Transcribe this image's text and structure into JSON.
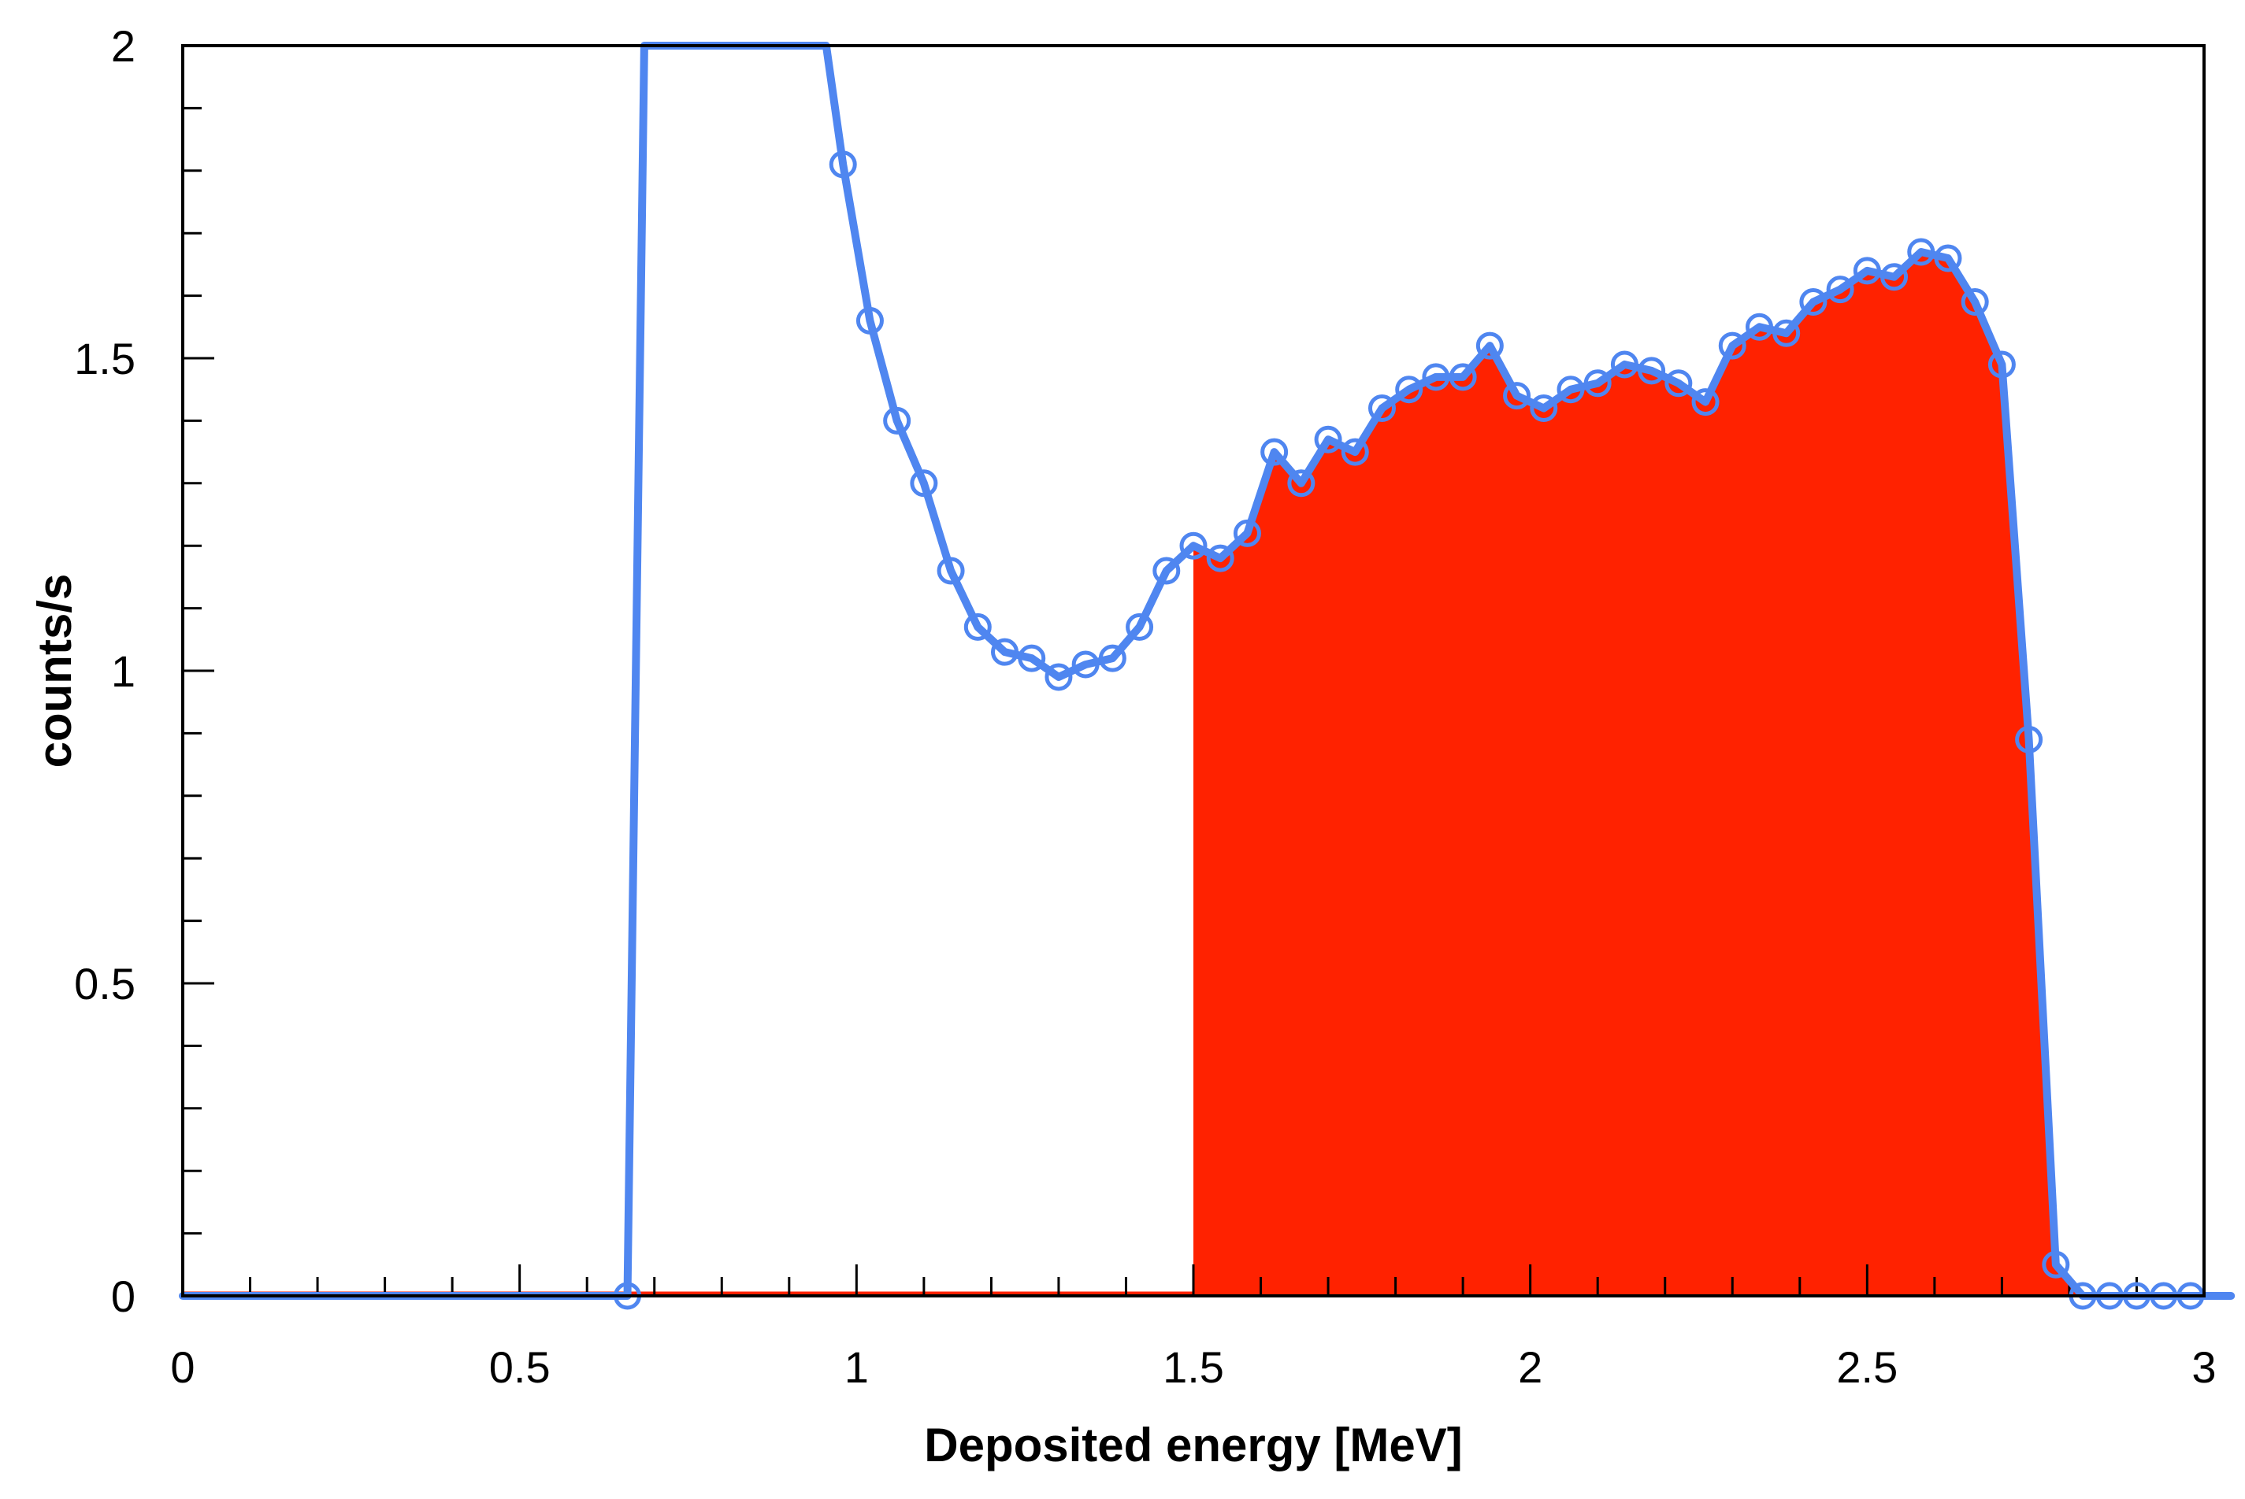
{
  "chart_data": {
    "type": "area",
    "xlabel": "Deposited energy [MeV]",
    "ylabel": "counts/s",
    "xlim": [
      0,
      3
    ],
    "ylim": [
      0,
      2
    ],
    "x_ticks": [
      "0",
      "0.5",
      "1",
      "1.5",
      "2",
      "2.5",
      "3"
    ],
    "y_ticks": [
      "0",
      "0.5",
      "1",
      "1.5",
      "2"
    ],
    "x_minor_step": 0.1,
    "y_minor_step": 0.1,
    "grid": false,
    "legend": "none",
    "fill_from_x": 1.5,
    "colors": {
      "line": "#4f86f0",
      "fill": "#ff2200",
      "axis": "#000000"
    },
    "series": [
      {
        "marker": "open-circle",
        "points": [
          [
            0.66,
            0.0
          ],
          [
            0.98,
            1.81
          ],
          [
            1.02,
            1.56
          ],
          [
            1.06,
            1.4
          ],
          [
            1.1,
            1.3
          ],
          [
            1.14,
            1.16
          ],
          [
            1.18,
            1.07
          ],
          [
            1.22,
            1.03
          ],
          [
            1.26,
            1.02
          ],
          [
            1.3,
            0.99
          ],
          [
            1.34,
            1.01
          ],
          [
            1.38,
            1.02
          ],
          [
            1.42,
            1.07
          ],
          [
            1.46,
            1.16
          ],
          [
            1.5,
            1.2
          ],
          [
            1.54,
            1.18
          ],
          [
            1.58,
            1.22
          ],
          [
            1.62,
            1.35
          ],
          [
            1.66,
            1.3
          ],
          [
            1.7,
            1.37
          ],
          [
            1.74,
            1.35
          ],
          [
            1.78,
            1.42
          ],
          [
            1.82,
            1.45
          ],
          [
            1.86,
            1.47
          ],
          [
            1.9,
            1.47
          ],
          [
            1.94,
            1.52
          ],
          [
            1.98,
            1.44
          ],
          [
            2.02,
            1.42
          ],
          [
            2.06,
            1.45
          ],
          [
            2.1,
            1.46
          ],
          [
            2.14,
            1.49
          ],
          [
            2.18,
            1.48
          ],
          [
            2.22,
            1.46
          ],
          [
            2.26,
            1.43
          ],
          [
            2.3,
            1.52
          ],
          [
            2.34,
            1.55
          ],
          [
            2.38,
            1.54
          ],
          [
            2.42,
            1.59
          ],
          [
            2.46,
            1.61
          ],
          [
            2.5,
            1.64
          ],
          [
            2.54,
            1.63
          ],
          [
            2.58,
            1.67
          ],
          [
            2.62,
            1.66
          ],
          [
            2.66,
            1.59
          ],
          [
            2.7,
            1.49
          ],
          [
            2.74,
            0.89
          ],
          [
            2.78,
            0.05
          ],
          [
            2.82,
            0.0
          ],
          [
            2.86,
            0.0
          ],
          [
            2.9,
            0.0
          ],
          [
            2.94,
            0.0
          ],
          [
            2.98,
            0.0
          ]
        ],
        "off_scale_segment": [
          [
            0.685,
            2.0
          ],
          [
            0.955,
            2.0
          ]
        ]
      }
    ]
  }
}
